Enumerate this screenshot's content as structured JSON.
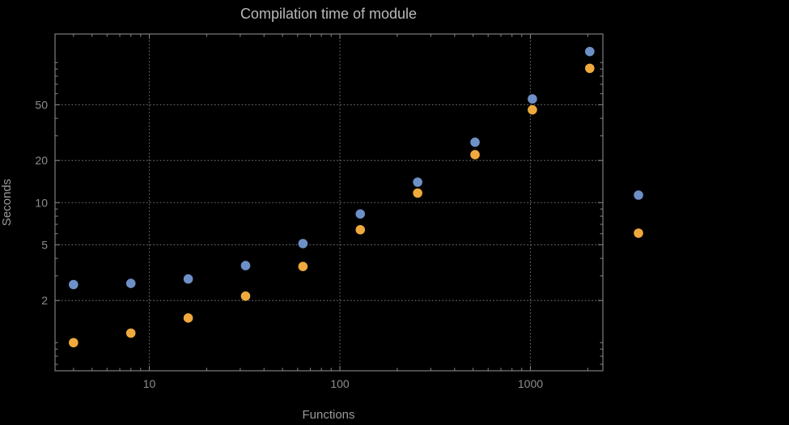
{
  "chart": {
    "title": "Compilation time of module",
    "xlabel": "Functions",
    "ylabel": "Seconds",
    "style": {
      "background_color": "#000000",
      "frame_color": "#7e7e7e",
      "grid_color": "#5f5f5f",
      "title_color": "#b9b9b9",
      "label_color": "#9a9a9a",
      "tick_label_color": "#8d8d8d"
    }
  },
  "chart_data": {
    "type": "scatter",
    "title": "Compilation time of module",
    "xlabel": "Functions",
    "ylabel": "Seconds",
    "x_scale": "log",
    "y_scale": "log",
    "grid": "dotted",
    "x": [
      4,
      8,
      16,
      32,
      64,
      128,
      256,
      512,
      1024,
      2048
    ],
    "series": [
      {
        "name": "blue",
        "color": "#6D90C7",
        "values": [
          2.6,
          2.65,
          2.85,
          3.55,
          5.1,
          8.3,
          14,
          27,
          55,
          120
        ]
      },
      {
        "name": "orange",
        "color": "#EFA93C",
        "values": [
          1.0,
          1.17,
          1.5,
          2.15,
          3.5,
          6.4,
          11.7,
          22,
          46,
          91
        ]
      }
    ],
    "x_ticks": [
      10,
      100,
      1000
    ],
    "y_ticks": [
      2,
      5,
      10,
      20,
      50
    ],
    "xlim": [
      3.2,
      2400
    ],
    "ylim": [
      0.63,
      160
    ],
    "legend_position": "right-middle",
    "legend_note": "two unlabeled point markers outside right frame edge"
  }
}
